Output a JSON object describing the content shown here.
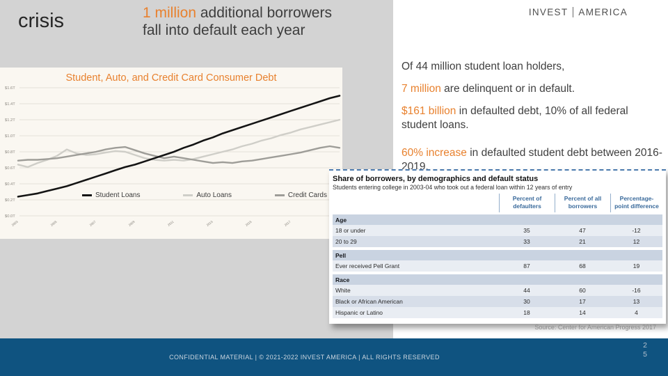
{
  "slide": {
    "kicker": "crisis",
    "headline": {
      "highlight": "1 million",
      "rest": " additional borrowers fall into default each year"
    }
  },
  "logo": {
    "left": "INVEST",
    "right": "AMERICA"
  },
  "stats": [
    {
      "highlight": "",
      "text": "Of 44 million student loan holders,"
    },
    {
      "highlight": "7 million",
      "text": " are delinquent or in default."
    },
    {
      "highlight": "$161 billion",
      "text": " in defaulted debt, 10% of all federal student loans."
    },
    {
      "highlight": "60% increase",
      "text": " in defaulted student debt between 2016-2019."
    }
  ],
  "chart_data": {
    "type": "line",
    "title": "Student, Auto, and Credit Card Consumer Debt",
    "x": [
      2003,
      2003.5,
      2004,
      2004.5,
      2005,
      2005.5,
      2006,
      2006.5,
      2007,
      2007.5,
      2008,
      2008.5,
      2009,
      2009.5,
      2010,
      2010.5,
      2011,
      2011.5,
      2012,
      2012.5,
      2013,
      2013.5,
      2014,
      2014.5,
      2015,
      2015.5,
      2016,
      2016.5,
      2017,
      2017.5,
      2018,
      2018.5,
      2019,
      2019.5
    ],
    "series": [
      {
        "name": "Student Loans",
        "color": "#141414",
        "width": 2.6,
        "values": [
          0.24,
          0.26,
          0.28,
          0.31,
          0.34,
          0.37,
          0.41,
          0.45,
          0.49,
          0.53,
          0.57,
          0.61,
          0.64,
          0.68,
          0.72,
          0.76,
          0.8,
          0.85,
          0.89,
          0.94,
          0.98,
          1.03,
          1.07,
          1.11,
          1.15,
          1.19,
          1.23,
          1.27,
          1.31,
          1.35,
          1.39,
          1.43,
          1.47,
          1.5
        ]
      },
      {
        "name": "Auto Loans",
        "color": "#cfcec8",
        "width": 2.4,
        "values": [
          0.64,
          0.61,
          0.66,
          0.7,
          0.75,
          0.83,
          0.78,
          0.76,
          0.77,
          0.79,
          0.81,
          0.8,
          0.76,
          0.72,
          0.7,
          0.69,
          0.7,
          0.69,
          0.71,
          0.74,
          0.77,
          0.8,
          0.83,
          0.87,
          0.9,
          0.94,
          0.97,
          1.01,
          1.04,
          1.08,
          1.11,
          1.14,
          1.17,
          1.2
        ]
      },
      {
        "name": "Credit Cards",
        "color": "#9e9d98",
        "width": 2.4,
        "values": [
          0.69,
          0.7,
          0.7,
          0.71,
          0.72,
          0.74,
          0.76,
          0.78,
          0.8,
          0.83,
          0.85,
          0.86,
          0.82,
          0.78,
          0.75,
          0.72,
          0.74,
          0.72,
          0.7,
          0.68,
          0.66,
          0.67,
          0.66,
          0.68,
          0.69,
          0.71,
          0.73,
          0.75,
          0.77,
          0.79,
          0.82,
          0.85,
          0.87,
          0.85
        ]
      }
    ],
    "ylim": [
      0,
      1.6
    ],
    "y_ticks": [
      "$0.0T",
      "$0.2T",
      "$0.4T",
      "$0.6T",
      "$0.8T",
      "$1.0T",
      "$1.2T",
      "$1.4T",
      "$1.6T"
    ],
    "x_ticks": [
      "2003",
      "2005",
      "2007",
      "2009",
      "2011",
      "2013",
      "2015",
      "2017"
    ],
    "grid": true,
    "legend_position": "bottom-inside"
  },
  "table": {
    "title": "Share of borrowers, by demographics and default status",
    "subtitle": "Students entering college in 2003-04 who took out a federal loan within 12 years of entry",
    "columns": [
      "Percent of defaulters",
      "Percent of all borrowers",
      "Percentage-point difference"
    ],
    "sections": [
      {
        "name": "Age",
        "rows": [
          {
            "label": "18 or under",
            "values": [
              35,
              47,
              -12
            ]
          },
          {
            "label": "20 to 29",
            "values": [
              33,
              21,
              12
            ]
          }
        ]
      },
      {
        "name": "Pell",
        "rows": [
          {
            "label": "Ever received Pell Grant",
            "values": [
              87,
              68,
              19
            ]
          }
        ]
      },
      {
        "name": "Race",
        "rows": [
          {
            "label": "White",
            "values": [
              44,
              60,
              -16
            ]
          },
          {
            "label": "Black or African American",
            "values": [
              30,
              17,
              13
            ]
          },
          {
            "label": "Hispanic or Latino",
            "values": [
              18,
              14,
              4
            ]
          }
        ]
      }
    ],
    "source": "Source: Center for American Progress 2017"
  },
  "footer": {
    "text": "CONFIDENTIAL MATERIAL | © 2021-2022 INVEST AMERICA | ALL RIGHTS RESERVED"
  },
  "page": {
    "current": "2",
    "total": "5"
  },
  "colors": {
    "accent_orange": "#E8812E",
    "footer_blue": "#0F5380",
    "table_header_blue": "#3A6A9B",
    "table_section_bg": "#C9D3E1",
    "slide_gray": "#D3D3D3",
    "chart_cream": "#FAF7F1"
  }
}
